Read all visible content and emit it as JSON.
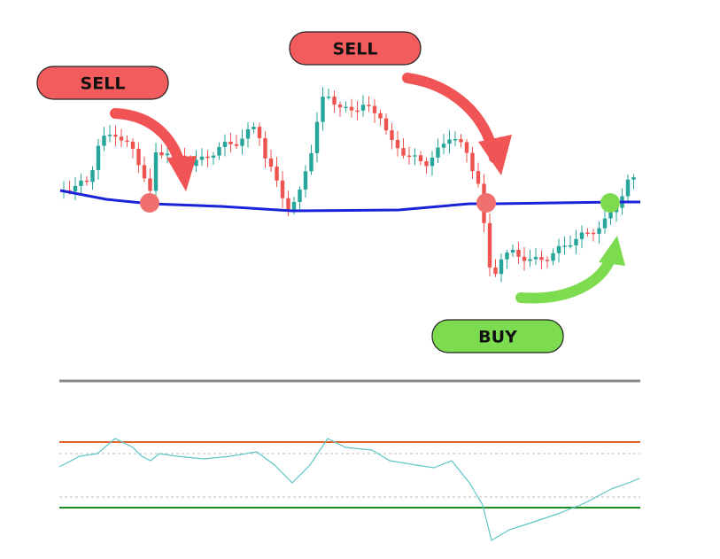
{
  "labels": {
    "sell_left": "SELL",
    "sell_top": "SELL",
    "buy": "BUY"
  }
}
